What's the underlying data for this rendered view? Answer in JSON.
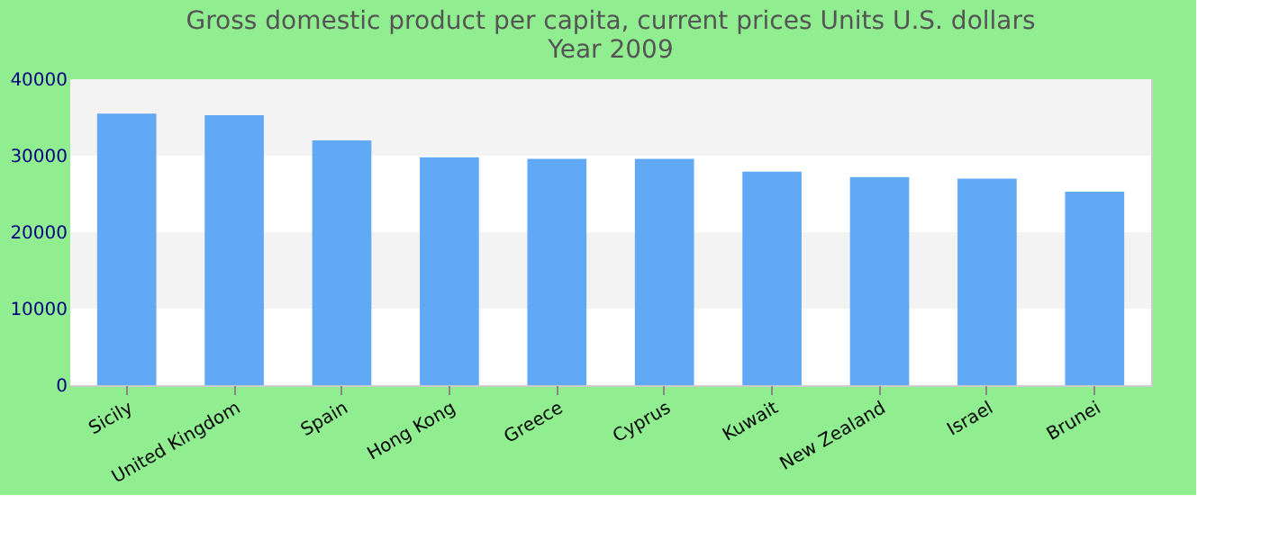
{
  "chart_data": {
    "type": "bar",
    "title": [
      "Gross domestic product per capita, current prices Units U.S. dollars",
      "Year 2009"
    ],
    "categories": [
      "Sicily",
      "United Kingdom",
      "Spain",
      "Hong Kong",
      "Greece",
      "Cyprus",
      "Kuwait",
      "New Zealand",
      "Israel",
      "Brunei"
    ],
    "values": [
      35500,
      35300,
      32000,
      29800,
      29600,
      29600,
      27900,
      27200,
      27000,
      25300
    ],
    "color": "#62a9f5",
    "ylim": [
      0,
      40000
    ],
    "yticks": [
      0,
      10000,
      20000,
      30000,
      40000
    ]
  }
}
